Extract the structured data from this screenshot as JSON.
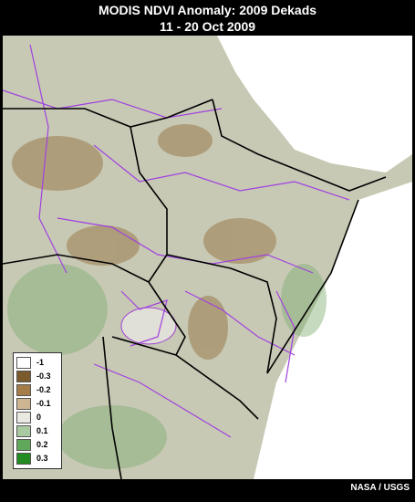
{
  "header": {
    "title": "MODIS NDVI Anomaly: 2009 Dekads",
    "subtitle": "11 - 20 Oct 2009"
  },
  "legend": {
    "items": [
      {
        "label": "-1",
        "color": "#ffffff"
      },
      {
        "label": "-0.3",
        "color": "#7b5a2c"
      },
      {
        "label": "-0.2",
        "color": "#a37c47"
      },
      {
        "label": "-0.1",
        "color": "#cdb592"
      },
      {
        "label": "0",
        "color": "#e9e9e2"
      },
      {
        "label": "0.1",
        "color": "#a9c9a1"
      },
      {
        "label": "0.2",
        "color": "#62a85a"
      },
      {
        "label": "0.3",
        "color": "#228c22"
      }
    ]
  },
  "credit": "NASA / USGS"
}
